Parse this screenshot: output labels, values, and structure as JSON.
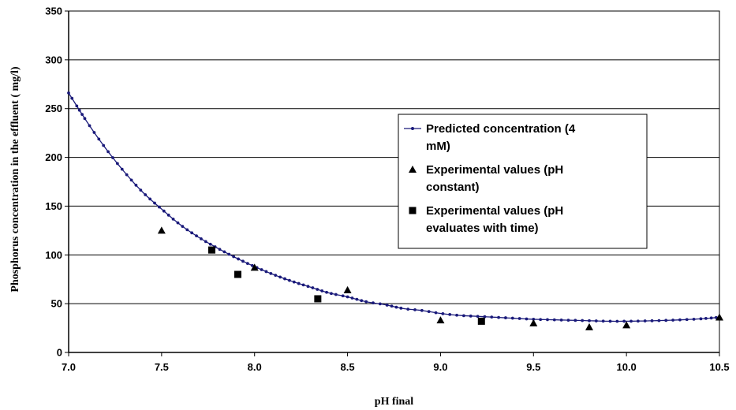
{
  "chart_data": {
    "type": "scatter",
    "xlabel": "pH final",
    "ylabel": "Phosphorus concentration in the effluent  ( mg/l)",
    "xlim": [
      7.0,
      10.5
    ],
    "ylim": [
      0,
      350
    ],
    "xticks": [
      "7.0",
      "7.5",
      "8.0",
      "8.5",
      "9.0",
      "9.5",
      "10.0",
      "10.5"
    ],
    "yticks": [
      "0",
      "50",
      "100",
      "150",
      "200",
      "250",
      "300",
      "350"
    ],
    "grid": "horizontal",
    "legend_position": "right",
    "series": [
      {
        "name_lines": [
          "Predicted concentration (4",
          "mM)"
        ],
        "style": "line-with-small-dots",
        "color": "#1a1a7a",
        "x": [
          7.0,
          7.1,
          7.2,
          7.3,
          7.4,
          7.5,
          7.6,
          7.7,
          7.8,
          7.9,
          8.0,
          8.1,
          8.2,
          8.3,
          8.4,
          8.5,
          8.6,
          8.7,
          8.8,
          8.9,
          9.0,
          9.1,
          9.2,
          9.3,
          9.4,
          9.5,
          9.6,
          9.7,
          9.8,
          9.9,
          10.0,
          10.1,
          10.2,
          10.3,
          10.4,
          10.5
        ],
        "y": [
          266,
          236,
          209,
          185,
          164,
          147,
          131,
          118,
          107,
          97,
          88,
          80,
          73,
          67,
          61,
          57,
          52,
          49,
          45,
          43,
          40,
          38,
          37,
          36,
          35,
          34,
          33.5,
          33,
          32.5,
          32,
          32,
          32.3,
          32.8,
          33.5,
          34.5,
          36
        ]
      },
      {
        "name_lines": [
          "Experimental values  (pH",
          "constant)"
        ],
        "style": "triangle-markers",
        "color": "#000000",
        "x": [
          7.5,
          8.0,
          8.5,
          9.0,
          9.5,
          9.8,
          10.0,
          10.5
        ],
        "y": [
          125,
          87,
          64,
          33,
          30,
          26,
          28,
          36
        ]
      },
      {
        "name_lines": [
          "Experimental values (pH",
          "evaluates with time)"
        ],
        "style": "square-markers",
        "color": "#000000",
        "x": [
          7.77,
          7.91,
          8.34,
          9.22
        ],
        "y": [
          105,
          80,
          55,
          32
        ]
      }
    ]
  }
}
